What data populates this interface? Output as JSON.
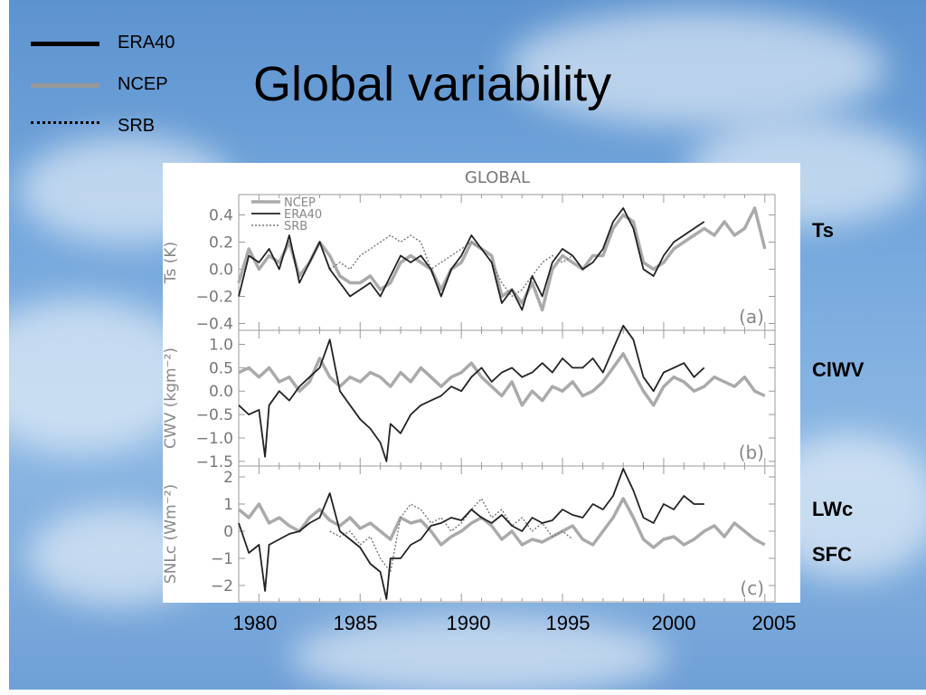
{
  "slide": {
    "title": "Global variability",
    "legend": [
      {
        "label": "ERA40",
        "color": "#000000",
        "style": "solid-thick"
      },
      {
        "label": "NCEP",
        "color": "#999999",
        "style": "solid-thick"
      },
      {
        "label": "SRB",
        "color": "#000000",
        "style": "dotted"
      }
    ],
    "side_labels": [
      "Ts",
      "ClWV",
      "LWc",
      "SFC"
    ],
    "year_labels": [
      "1980",
      "1985",
      "1990",
      "1995",
      "2000",
      "2005"
    ]
  },
  "chart_data": {
    "type": "line",
    "title": "GLOBAL",
    "xlim": [
      1979,
      2005.5
    ],
    "xticks": [
      1980,
      1985,
      1990,
      1995,
      2000,
      2005
    ],
    "colors": {
      "NCEP": "#aaaaaa",
      "ERA40": "#222222",
      "SRB": "#777777"
    },
    "panels": [
      {
        "id": "a",
        "tag": "(a)",
        "ylabel": "Ts (K)",
        "ylim": [
          -0.45,
          0.55
        ],
        "yticks": [
          -0.4,
          -0.2,
          0.0,
          0.2,
          0.4
        ],
        "yticklabels": [
          "−0.4",
          "−0.2",
          "0.0",
          "0.2",
          "0.4"
        ],
        "legend": [
          "NCEP",
          "ERA40",
          "SRB"
        ],
        "series": [
          {
            "name": "NCEP",
            "x": [
              1979,
              1979.5,
              1980,
              1980.5,
              1981,
              1981.5,
              1982,
              1982.5,
              1983,
              1983.5,
              1984,
              1984.5,
              1985,
              1985.5,
              1986,
              1986.5,
              1987,
              1987.5,
              1988,
              1988.5,
              1989,
              1989.5,
              1990,
              1990.5,
              1991,
              1991.5,
              1992,
              1992.5,
              1993,
              1993.5,
              1994,
              1994.5,
              1995,
              1995.5,
              1996,
              1996.5,
              1997,
              1997.5,
              1998,
              1998.5,
              1999,
              1999.5,
              2000,
              2000.5,
              2001,
              2001.5,
              2002,
              2002.5,
              2003,
              2003.5,
              2004,
              2004.5,
              2005
            ],
            "y": [
              -0.1,
              0.15,
              0.0,
              0.1,
              0.05,
              0.2,
              -0.05,
              0.05,
              0.2,
              0.1,
              -0.05,
              -0.1,
              -0.1,
              -0.05,
              -0.15,
              -0.1,
              0.05,
              0.1,
              0.05,
              0.0,
              -0.15,
              0.0,
              0.05,
              0.2,
              0.15,
              0.1,
              -0.2,
              -0.15,
              -0.25,
              -0.1,
              -0.3,
              0.0,
              0.1,
              0.05,
              0.0,
              0.1,
              0.1,
              0.3,
              0.4,
              0.35,
              0.05,
              0.0,
              0.05,
              0.15,
              0.2,
              0.25,
              0.3,
              0.25,
              0.35,
              0.25,
              0.3,
              0.45,
              0.15
            ]
          },
          {
            "name": "ERA40",
            "x": [
              1979,
              1979.5,
              1980,
              1980.5,
              1981,
              1981.5,
              1982,
              1982.5,
              1983,
              1983.5,
              1984,
              1984.5,
              1985,
              1985.5,
              1986,
              1986.5,
              1987,
              1987.5,
              1988,
              1988.5,
              1989,
              1989.5,
              1990,
              1990.5,
              1991,
              1991.5,
              1992,
              1992.5,
              1993,
              1993.5,
              1994,
              1994.5,
              1995,
              1995.5,
              1996,
              1996.5,
              1997,
              1997.5,
              1998,
              1998.5,
              1999,
              1999.5,
              2000,
              2000.5,
              2001,
              2001.5,
              2002
            ],
            "y": [
              -0.2,
              0.1,
              0.05,
              0.15,
              0.0,
              0.25,
              -0.1,
              0.05,
              0.2,
              0.0,
              -0.1,
              -0.2,
              -0.15,
              -0.1,
              -0.2,
              -0.05,
              0.1,
              0.05,
              0.1,
              0.0,
              -0.2,
              0.0,
              0.1,
              0.25,
              0.15,
              0.05,
              -0.25,
              -0.15,
              -0.3,
              -0.05,
              -0.2,
              0.05,
              0.15,
              0.1,
              0.0,
              0.05,
              0.15,
              0.35,
              0.45,
              0.3,
              0.0,
              -0.05,
              0.1,
              0.2,
              0.25,
              0.3,
              0.35
            ]
          },
          {
            "name": "SRB",
            "x": [
              1983.5,
              1984,
              1984.5,
              1985,
              1985.5,
              1986,
              1986.5,
              1987,
              1987.5,
              1988,
              1988.5,
              1989,
              1989.5,
              1990,
              1990.5,
              1991,
              1991.5,
              1992,
              1992.5,
              1993,
              1993.5,
              1994,
              1994.5,
              1995,
              1995.5
            ],
            "y": [
              0.0,
              0.05,
              0.0,
              0.1,
              0.15,
              0.2,
              0.25,
              0.2,
              0.25,
              0.2,
              0.0,
              0.05,
              0.1,
              0.15,
              0.2,
              0.15,
              0.05,
              -0.1,
              -0.2,
              -0.15,
              -0.05,
              0.05,
              0.1,
              0.05,
              0.1
            ]
          }
        ]
      },
      {
        "id": "b",
        "tag": "(b)",
        "ylabel": "CWV (kgm⁻²)",
        "ylim": [
          -1.6,
          1.3
        ],
        "yticks": [
          -1.5,
          -1.0,
          -0.5,
          0.0,
          0.5,
          1.0
        ],
        "yticklabels": [
          "−1.5",
          "−1.0",
          "−0.5",
          "0.0",
          "0.5",
          "1.0"
        ],
        "series": [
          {
            "name": "NCEP",
            "x": [
              1979,
              1979.5,
              1980,
              1980.5,
              1981,
              1981.5,
              1982,
              1982.5,
              1983,
              1983.5,
              1984,
              1984.5,
              1985,
              1985.5,
              1986,
              1986.5,
              1987,
              1987.5,
              1988,
              1988.5,
              1989,
              1989.5,
              1990,
              1990.5,
              1991,
              1991.5,
              1992,
              1992.5,
              1993,
              1993.5,
              1994,
              1994.5,
              1995,
              1995.5,
              1996,
              1996.5,
              1997,
              1997.5,
              1998,
              1998.5,
              1999,
              1999.5,
              2000,
              2000.5,
              2001,
              2001.5,
              2002,
              2002.5,
              2003,
              2003.5,
              2004,
              2004.5,
              2005
            ],
            "y": [
              0.4,
              0.5,
              0.3,
              0.5,
              0.2,
              0.3,
              0.0,
              0.2,
              0.7,
              0.3,
              0.1,
              0.3,
              0.2,
              0.4,
              0.3,
              0.1,
              0.4,
              0.2,
              0.5,
              0.3,
              0.1,
              0.3,
              0.4,
              0.6,
              0.3,
              0.1,
              -0.1,
              0.2,
              -0.3,
              0.0,
              -0.2,
              0.1,
              0.0,
              0.2,
              -0.1,
              0.0,
              0.2,
              0.5,
              0.8,
              0.4,
              0.0,
              -0.3,
              0.1,
              0.3,
              0.2,
              0.0,
              0.1,
              0.3,
              0.2,
              0.1,
              0.3,
              0.0,
              -0.1
            ]
          },
          {
            "name": "ERA40",
            "x": [
              1979,
              1979.5,
              1980,
              1980.3,
              1980.5,
              1981,
              1981.5,
              1982,
              1982.5,
              1983,
              1983.5,
              1984,
              1984.5,
              1985,
              1985.5,
              1986,
              1986.3,
              1986.5,
              1987,
              1987.5,
              1988,
              1988.5,
              1989,
              1989.5,
              1990,
              1990.5,
              1991,
              1991.5,
              1992,
              1992.5,
              1993,
              1993.5,
              1994,
              1994.5,
              1995,
              1995.5,
              1996,
              1996.5,
              1997,
              1997.5,
              1998,
              1998.5,
              1999,
              1999.5,
              2000,
              2000.5,
              2001,
              2001.5,
              2002
            ],
            "y": [
              -0.3,
              -0.5,
              -0.4,
              -1.4,
              -0.3,
              0.0,
              -0.2,
              0.1,
              0.3,
              0.5,
              1.1,
              0.0,
              -0.3,
              -0.6,
              -0.8,
              -1.1,
              -1.5,
              -0.7,
              -0.9,
              -0.5,
              -0.3,
              -0.2,
              -0.1,
              0.1,
              0.0,
              0.3,
              0.5,
              0.2,
              0.4,
              0.5,
              0.3,
              0.4,
              0.6,
              0.4,
              0.7,
              0.5,
              0.5,
              0.7,
              0.4,
              0.9,
              1.4,
              1.1,
              0.3,
              0.0,
              0.4,
              0.5,
              0.6,
              0.3,
              0.5
            ]
          }
        ]
      },
      {
        "id": "c",
        "tag": "(c)",
        "ylabel": "SNLc (Wm⁻²)",
        "ylim": [
          -2.6,
          2.4
        ],
        "yticks": [
          -2,
          -1,
          0,
          1,
          2
        ],
        "yticklabels": [
          "−2",
          "−1",
          "0",
          "1",
          "2"
        ],
        "series": [
          {
            "name": "NCEP",
            "x": [
              1979,
              1979.5,
              1980,
              1980.5,
              1981,
              1981.5,
              1982,
              1982.5,
              1983,
              1983.5,
              1984,
              1984.5,
              1985,
              1985.5,
              1986,
              1986.5,
              1987,
              1987.5,
              1988,
              1988.5,
              1989,
              1989.5,
              1990,
              1990.5,
              1991,
              1991.5,
              1992,
              1992.5,
              1993,
              1993.5,
              1994,
              1994.5,
              1995,
              1995.5,
              1996,
              1996.5,
              1997,
              1997.5,
              1998,
              1998.5,
              1999,
              1999.5,
              2000,
              2000.5,
              2001,
              2001.5,
              2002,
              2002.5,
              2003,
              2003.5,
              2004,
              2004.5,
              2005
            ],
            "y": [
              0.8,
              0.5,
              1.0,
              0.3,
              0.5,
              0.2,
              0.0,
              0.5,
              0.8,
              0.4,
              0.2,
              0.5,
              0.1,
              0.3,
              0.0,
              -0.3,
              0.5,
              0.3,
              0.4,
              0.0,
              -0.5,
              -0.2,
              0.0,
              0.3,
              0.5,
              0.2,
              -0.3,
              0.0,
              -0.5,
              -0.3,
              -0.4,
              -0.2,
              0.0,
              0.2,
              -0.3,
              -0.5,
              0.0,
              0.5,
              1.2,
              0.5,
              -0.3,
              -0.6,
              -0.3,
              -0.2,
              -0.5,
              -0.3,
              0.0,
              0.2,
              -0.2,
              0.3,
              0.0,
              -0.3,
              -0.5
            ]
          },
          {
            "name": "ERA40",
            "x": [
              1979,
              1979.5,
              1980,
              1980.3,
              1980.5,
              1981,
              1981.5,
              1982,
              1982.5,
              1983,
              1983.5,
              1984,
              1984.5,
              1985,
              1985.5,
              1986,
              1986.3,
              1986.5,
              1987,
              1987.5,
              1988,
              1988.5,
              1989,
              1989.5,
              1990,
              1990.5,
              1991,
              1991.5,
              1992,
              1992.5,
              1993,
              1993.5,
              1994,
              1994.5,
              1995,
              1995.5,
              1996,
              1996.5,
              1997,
              1997.5,
              1998,
              1998.5,
              1999,
              1999.5,
              2000,
              2000.5,
              2001,
              2001.5,
              2002
            ],
            "y": [
              0.3,
              -0.8,
              -0.5,
              -2.2,
              -0.5,
              -0.3,
              -0.1,
              0.0,
              0.3,
              0.5,
              1.4,
              0.0,
              -0.3,
              -0.6,
              -1.2,
              -1.5,
              -2.5,
              -1.0,
              -1.0,
              -0.5,
              -0.3,
              0.2,
              0.3,
              0.5,
              0.4,
              0.8,
              0.5,
              0.3,
              0.6,
              0.2,
              0.0,
              0.5,
              0.3,
              0.4,
              0.8,
              0.6,
              0.5,
              1.0,
              0.8,
              1.3,
              2.3,
              1.5,
              0.5,
              0.3,
              1.0,
              0.8,
              1.3,
              1.0,
              1.0
            ]
          },
          {
            "name": "SRB",
            "x": [
              1983.5,
              1984,
              1984.5,
              1985,
              1985.5,
              1986,
              1986.5,
              1987,
              1987.5,
              1988,
              1988.5,
              1989,
              1989.5,
              1990,
              1990.5,
              1991,
              1991.5,
              1992,
              1992.5,
              1993,
              1993.5,
              1994,
              1994.5,
              1995,
              1995.5
            ],
            "y": [
              0.0,
              -0.2,
              0.0,
              -0.5,
              -0.2,
              -1.0,
              -1.5,
              0.5,
              1.0,
              0.8,
              0.3,
              0.5,
              0.0,
              0.3,
              0.8,
              1.2,
              0.5,
              0.8,
              0.2,
              0.5,
              0.0,
              0.3,
              -0.2,
              0.0,
              -0.3
            ]
          }
        ]
      }
    ]
  }
}
